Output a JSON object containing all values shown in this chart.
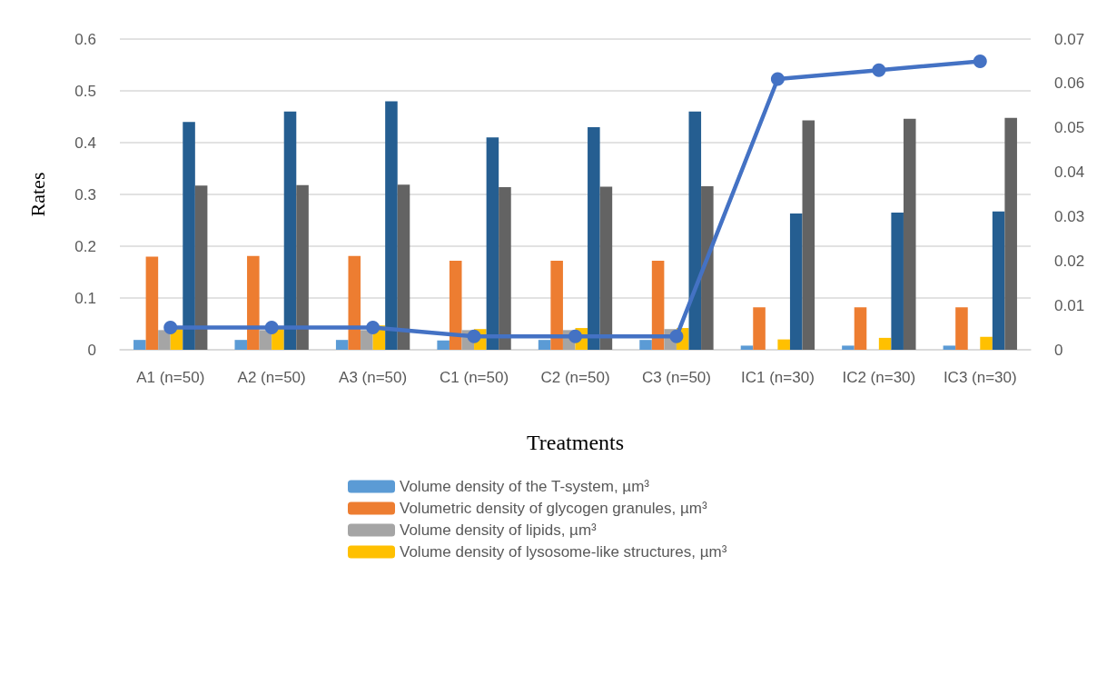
{
  "chart_data": {
    "type": "bar",
    "xlabel": "Treatments",
    "ylabel": "Rates",
    "categories": [
      "A1 (n=50)",
      "A2 (n=50)",
      "A3 (n=50)",
      "C1 (n=50)",
      "C2 (n=50)",
      "C3 (n=50)",
      "IC1 (n=30)",
      "IC2 (n=30)",
      "IC3 (n=30)"
    ],
    "series": [
      {
        "name": "Volume density of the T-system, µm³",
        "color": "#5b9bd5",
        "values": [
          0.019,
          0.019,
          0.019,
          0.018,
          0.019,
          0.019,
          0.008,
          0.008,
          0.008
        ]
      },
      {
        "name": "Volumetric density of glycogen granules, µm³",
        "color": "#ed7d31",
        "values": [
          0.18,
          0.181,
          0.181,
          0.172,
          0.172,
          0.172,
          0.082,
          0.082,
          0.082
        ]
      },
      {
        "name": "Volume density of lipids, µm³",
        "color": "#a5a5a5",
        "values": [
          0.038,
          0.038,
          0.038,
          0.038,
          0.038,
          0.04,
          null,
          null,
          null
        ]
      },
      {
        "name": "Volume density of lysosome-like structures, µm³",
        "color": "#ffc000",
        "values": [
          0.04,
          0.04,
          0.047,
          0.04,
          0.042,
          0.042,
          0.02,
          0.023,
          0.025
        ]
      },
      {
        "color": "#255e91",
        "values": [
          0.44,
          0.46,
          0.48,
          0.41,
          0.43,
          0.46,
          0.263,
          0.265,
          0.267
        ]
      },
      {
        "color": "#636363",
        "values": [
          0.317,
          0.318,
          0.319,
          0.314,
          0.315,
          0.316,
          0.443,
          0.446,
          0.448
        ]
      },
      {
        "type": "line",
        "axis": "y2",
        "color": "#4472c4",
        "values": [
          0.005,
          0.005,
          0.005,
          0.003,
          0.003,
          0.003,
          0.061,
          0.063,
          0.065
        ]
      }
    ],
    "ylim": [
      0,
      0.6
    ],
    "yticks": [
      0,
      0.1,
      0.2,
      0.3,
      0.4,
      0.5,
      0.6
    ],
    "y2lim": [
      0,
      0.07
    ],
    "y2ticks": [
      0,
      0.01,
      0.02,
      0.03,
      0.04,
      0.05,
      0.06,
      0.07
    ],
    "grid": "y",
    "legend": "bottom",
    "marker": "circle",
    "line_style": "solid"
  }
}
